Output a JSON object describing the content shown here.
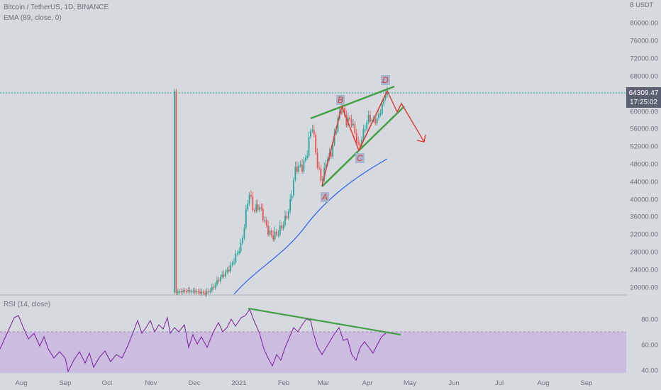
{
  "legend": {
    "symbol": "Bitcoin / TetherUS, 1D, BINANCE",
    "ema": "EMA (89, close, 0)",
    "rsi": "RSI (14, close)"
  },
  "price_axis": {
    "currency": "USDT",
    "currency_prefix": "8",
    "ticks": [
      "80000.00",
      "76000.00",
      "72000.00",
      "68000.00",
      "60000.00",
      "56000.00",
      "52000.00",
      "48000.00",
      "44000.00",
      "40000.00",
      "36000.00",
      "32000.00",
      "28000.00",
      "24000.00",
      "20000.00"
    ]
  },
  "rsi_axis": {
    "ticks": [
      "80.00",
      "60.00",
      "40.00"
    ]
  },
  "last_price": {
    "value": "64309.47",
    "countdown": "17:25:02"
  },
  "time_axis": [
    "Aug",
    "Sep",
    "Oct",
    "Nov",
    "Dec",
    "2021",
    "Feb",
    "Mar",
    "Apr",
    "May",
    "Jun",
    "Jul",
    "Aug",
    "Sep"
  ],
  "pattern_points": {
    "a": "A",
    "b": "B",
    "c": "C",
    "d": "D"
  },
  "colors": {
    "up": "#26a69a",
    "down": "#ef5350",
    "ema": "#2962ff",
    "rsi_line": "#7b1fa2",
    "rsi_band": "#c9b6e0",
    "trendline": "#43a047",
    "pattern": "#e53935"
  }
}
